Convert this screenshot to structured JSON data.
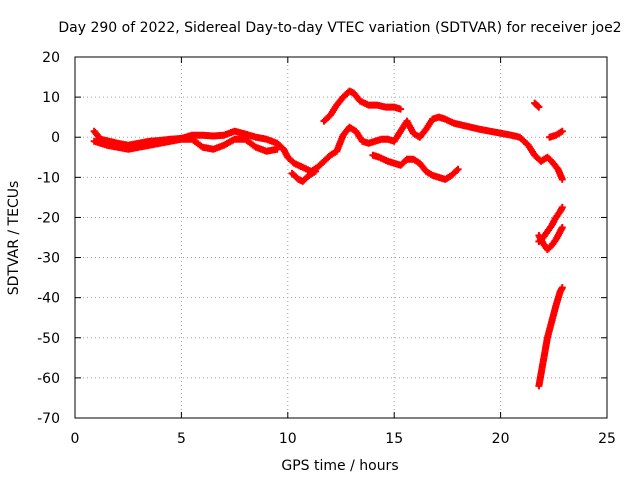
{
  "chart_data": {
    "type": "scatter",
    "title": "Day 290 of 2022, Sidereal Day-to-day VTEC variation (SDTVAR) for receiver joe2",
    "xlabel": "GPS time / hours",
    "ylabel": "SDTVAR / TECUs",
    "xlim": [
      0,
      25
    ],
    "ylim": [
      -70,
      20
    ],
    "xticks": [
      0,
      5,
      10,
      15,
      20,
      25
    ],
    "yticks": [
      -70,
      -60,
      -50,
      -40,
      -30,
      -20,
      -10,
      0,
      10,
      20
    ],
    "grid": true,
    "series_color": "#ff0000",
    "series": [
      {
        "name": "track-main",
        "points": [
          [
            0.9,
            1.5
          ],
          [
            1.2,
            -0.5
          ],
          [
            1.6,
            -1.0
          ],
          [
            2.0,
            -1.5
          ],
          [
            2.5,
            -2.0
          ],
          [
            3.0,
            -1.5
          ],
          [
            3.5,
            -1.0
          ],
          [
            4.0,
            -0.8
          ],
          [
            4.5,
            -0.5
          ],
          [
            5.0,
            -0.3
          ],
          [
            5.5,
            0.5
          ],
          [
            6.0,
            0.5
          ],
          [
            6.5,
            0.3
          ],
          [
            7.0,
            0.5
          ],
          [
            7.5,
            1.5
          ],
          [
            8.0,
            0.8
          ],
          [
            8.5,
            0.0
          ],
          [
            9.0,
            -0.5
          ],
          [
            9.5,
            -1.5
          ],
          [
            9.8,
            -3.0
          ],
          [
            10.0,
            -5.0
          ],
          [
            10.3,
            -6.5
          ],
          [
            10.7,
            -7.5
          ],
          [
            11.1,
            -8.5
          ],
          [
            11.4,
            -7.5
          ],
          [
            11.7,
            -6.0
          ],
          [
            12.0,
            -4.5
          ],
          [
            12.3,
            -3.5
          ],
          [
            12.6,
            0.5
          ],
          [
            12.9,
            2.5
          ],
          [
            13.2,
            1.5
          ],
          [
            13.5,
            -1.0
          ],
          [
            13.8,
            -1.5
          ],
          [
            14.1,
            -1.0
          ],
          [
            14.4,
            -0.5
          ],
          [
            14.7,
            -0.5
          ],
          [
            15.0,
            -1.0
          ],
          [
            15.3,
            1.5
          ],
          [
            15.6,
            4.0
          ],
          [
            15.9,
            1.0
          ],
          [
            16.2,
            0.0
          ],
          [
            16.5,
            2.0
          ],
          [
            16.8,
            4.5
          ],
          [
            17.1,
            5.0
          ],
          [
            17.4,
            4.5
          ],
          [
            17.8,
            3.5
          ],
          [
            18.2,
            3.0
          ],
          [
            18.6,
            2.5
          ],
          [
            19.0,
            2.0
          ],
          [
            19.5,
            1.5
          ],
          [
            20.0,
            1.0
          ],
          [
            20.5,
            0.5
          ],
          [
            20.9,
            0.0
          ],
          [
            21.3,
            -2.0
          ],
          [
            21.6,
            -4.5
          ],
          [
            21.9,
            -6.0
          ],
          [
            22.2,
            -5.0
          ],
          [
            22.4,
            -6.0
          ],
          [
            22.7,
            -8.0
          ],
          [
            22.9,
            -10.5
          ]
        ]
      },
      {
        "name": "track-lower",
        "points": [
          [
            0.9,
            -1.0
          ],
          [
            1.5,
            -2.0
          ],
          [
            2.0,
            -2.5
          ],
          [
            2.5,
            -3.0
          ],
          [
            3.0,
            -2.5
          ],
          [
            3.5,
            -2.0
          ],
          [
            4.0,
            -1.5
          ],
          [
            4.5,
            -1.0
          ],
          [
            5.0,
            -0.5
          ],
          [
            5.5,
            -0.5
          ],
          [
            6.0,
            -2.5
          ],
          [
            6.5,
            -3.0
          ],
          [
            7.0,
            -2.0
          ],
          [
            7.5,
            -0.5
          ],
          [
            8.0,
            -0.5
          ],
          [
            8.5,
            -2.5
          ],
          [
            9.0,
            -3.5
          ],
          [
            9.5,
            -3.0
          ]
        ]
      },
      {
        "name": "track-upper-arc",
        "points": [
          [
            11.7,
            4.0
          ],
          [
            12.0,
            5.5
          ],
          [
            12.3,
            8.0
          ],
          [
            12.6,
            10.0
          ],
          [
            12.9,
            11.5
          ],
          [
            13.1,
            11.0
          ],
          [
            13.4,
            9.0
          ],
          [
            13.8,
            8.0
          ],
          [
            14.2,
            8.0
          ],
          [
            14.6,
            7.5
          ],
          [
            15.0,
            7.5
          ],
          [
            15.3,
            7.0
          ]
        ]
      },
      {
        "name": "track-dip",
        "points": [
          [
            10.2,
            -9.0
          ],
          [
            10.5,
            -10.5
          ],
          [
            10.7,
            -11.0
          ],
          [
            11.0,
            -9.5
          ],
          [
            11.3,
            -8.5
          ]
        ]
      },
      {
        "name": "track-mid-dip",
        "points": [
          [
            14.0,
            -4.5
          ],
          [
            14.3,
            -5.0
          ],
          [
            14.7,
            -6.0
          ],
          [
            15.0,
            -6.5
          ],
          [
            15.3,
            -7.0
          ],
          [
            15.6,
            -5.5
          ],
          [
            15.9,
            -5.5
          ],
          [
            16.2,
            -6.5
          ],
          [
            16.5,
            -8.5
          ],
          [
            16.8,
            -9.5
          ],
          [
            17.1,
            -10.0
          ],
          [
            17.4,
            -10.5
          ],
          [
            17.7,
            -9.5
          ],
          [
            18.0,
            -8.0
          ]
        ]
      },
      {
        "name": "track-spike-top",
        "points": [
          [
            21.6,
            8.5
          ],
          [
            21.7,
            8.0
          ],
          [
            21.8,
            7.5
          ]
        ]
      },
      {
        "name": "track-upper-right",
        "points": [
          [
            22.3,
            0.0
          ],
          [
            22.6,
            0.5
          ],
          [
            22.9,
            1.5
          ]
        ]
      },
      {
        "name": "track-fall-a",
        "points": [
          [
            21.8,
            -26.0
          ],
          [
            22.0,
            -25.0
          ],
          [
            22.2,
            -23.5
          ],
          [
            22.4,
            -22.0
          ],
          [
            22.6,
            -20.0
          ],
          [
            22.8,
            -18.5
          ],
          [
            22.9,
            -17.5
          ]
        ]
      },
      {
        "name": "track-fall-b",
        "points": [
          [
            21.8,
            -24.5
          ],
          [
            22.0,
            -26.5
          ],
          [
            22.2,
            -28.0
          ],
          [
            22.4,
            -27.0
          ],
          [
            22.6,
            -25.5
          ],
          [
            22.8,
            -23.5
          ],
          [
            22.9,
            -22.5
          ]
        ]
      },
      {
        "name": "track-fall-c",
        "points": [
          [
            21.8,
            -62.0
          ],
          [
            22.0,
            -56.0
          ],
          [
            22.2,
            -50.0
          ],
          [
            22.4,
            -46.0
          ],
          [
            22.6,
            -42.0
          ],
          [
            22.8,
            -38.5
          ],
          [
            22.9,
            -37.5
          ]
        ]
      }
    ]
  }
}
